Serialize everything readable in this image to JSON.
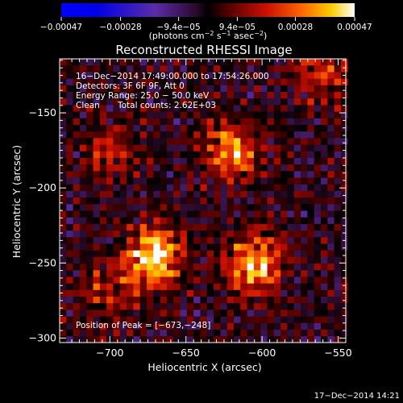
{
  "chart_data": {
    "type": "heatmap",
    "title": "Reconstructed RHESSI Image",
    "xlabel": "Heliocentric X (arcsec)",
    "ylabel": "Heliocentric Y (arcsec)",
    "xlim": [
      -733,
      -545
    ],
    "ylim": [
      -303,
      -114
    ],
    "x_ticks": [
      -700,
      -650,
      -600,
      -550
    ],
    "x_tick_labels": [
      "−700",
      "−650",
      "−600",
      "−550"
    ],
    "y_ticks": [
      -150,
      -200,
      -250,
      -300
    ],
    "y_tick_labels": [
      "−150",
      "−200",
      "−250",
      "−300"
    ],
    "colorbar": {
      "min": -0.00047,
      "max": 0.00047,
      "ticks": [
        -0.00047,
        -0.00028,
        -9.4e-05,
        9.4e-05,
        0.00028,
        0.00047
      ],
      "tick_labels": [
        "−0.00047",
        "−0.00028",
        "−9.4e−05",
        "9.4e−05",
        "0.00028",
        "0.00047"
      ],
      "unit_pre": "(photons cm",
      "unit_exp1": "−2",
      "unit_mid": " s",
      "unit_exp2": "−1",
      "unit_mid2": " asec",
      "unit_exp3": "−2",
      "unit_post": ")"
    },
    "annotations": {
      "time_range": "16−Dec−2014 17:49:00.000 to 17:54:26.000",
      "detectors": "Detectors: 3F 6F 9F, Att 0",
      "energy": "Energy Range: 25.0 − 50.0 keV",
      "clean": "Clean",
      "counts": "Total counts: 2.62E+03",
      "peak": "Position of Peak = [−673,−248]"
    },
    "sources": [
      {
        "x": -673,
        "y": -248,
        "peak": 1.0
      },
      {
        "x": -607,
        "y": -253,
        "peak": 0.85
      },
      {
        "x": -622,
        "y": -177,
        "peak": 0.72
      },
      {
        "x": -702,
        "y": -178,
        "peak": 0.35
      },
      {
        "x": -703,
        "y": -272,
        "peak": 0.35
      },
      {
        "x": -563,
        "y": -125,
        "peak": 0.45
      }
    ],
    "footer": "17−Dec−2014 14:21"
  }
}
